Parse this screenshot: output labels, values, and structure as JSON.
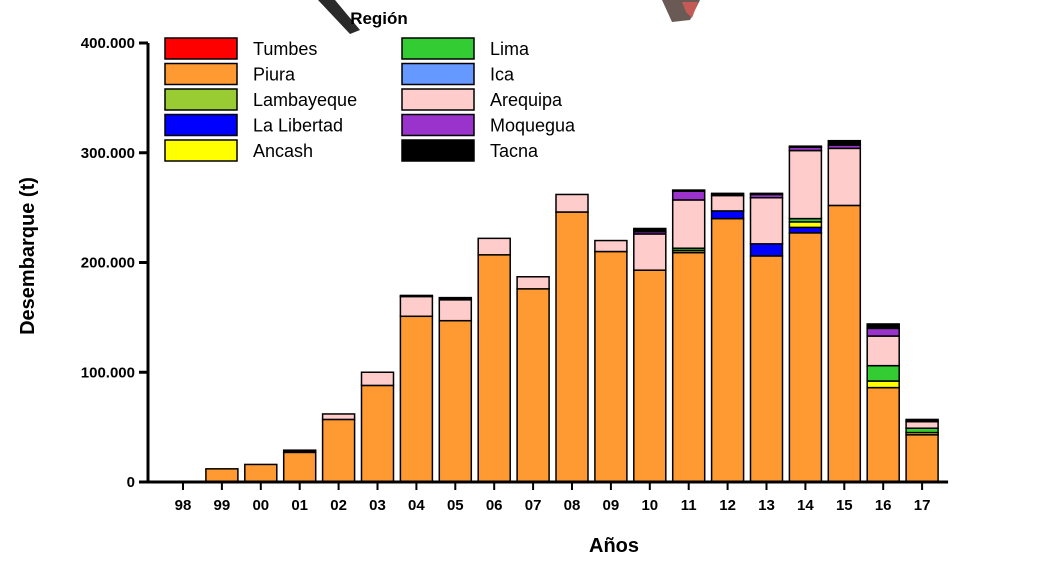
{
  "chart_data": {
    "type": "bar",
    "stacked": true,
    "xlabel": "Años",
    "ylabel": "Desembarque (t)",
    "ylim": [
      0,
      400000
    ],
    "yticks": [
      0,
      100000,
      200000,
      300000,
      400000
    ],
    "ytick_labels": [
      "0",
      "100.000",
      "200.000",
      "300.000",
      "400.000"
    ],
    "legend_title": "Región",
    "legend_position": "top-left",
    "grid": false,
    "categories": [
      "98",
      "99",
      "00",
      "01",
      "02",
      "03",
      "04",
      "05",
      "06",
      "07",
      "08",
      "09",
      "10",
      "11",
      "12",
      "13",
      "14",
      "15",
      "16",
      "17"
    ],
    "series": [
      {
        "name": "Tumbes",
        "color": "#ff0000",
        "values": [
          0,
          0,
          0,
          0,
          0,
          0,
          0,
          0,
          0,
          0,
          0,
          0,
          0,
          0,
          0,
          0,
          0,
          0,
          0,
          0
        ]
      },
      {
        "name": "Piura",
        "color": "#ff9a33",
        "values": [
          0,
          12000,
          16000,
          27000,
          57000,
          88000,
          151000,
          147000,
          207000,
          176000,
          246000,
          210000,
          193000,
          209000,
          240000,
          206000,
          227000,
          252000,
          86000,
          43000
        ]
      },
      {
        "name": "Lambayeque",
        "color": "#99cc33",
        "values": [
          0,
          0,
          0,
          0,
          0,
          0,
          0,
          0,
          0,
          0,
          0,
          0,
          0,
          2000,
          0,
          0,
          0,
          0,
          0,
          0
        ]
      },
      {
        "name": "La Libertad",
        "color": "#0000ff",
        "values": [
          0,
          0,
          0,
          0,
          0,
          0,
          0,
          0,
          0,
          0,
          0,
          0,
          0,
          0,
          7000,
          11000,
          5000,
          0,
          0,
          0
        ]
      },
      {
        "name": "Ancash",
        "color": "#ffff00",
        "values": [
          0,
          0,
          0,
          0,
          0,
          0,
          0,
          0,
          0,
          0,
          0,
          0,
          0,
          0,
          0,
          0,
          5000,
          0,
          6000,
          2000
        ]
      },
      {
        "name": "Lima",
        "color": "#33cc33",
        "values": [
          0,
          0,
          0,
          0,
          0,
          0,
          0,
          0,
          0,
          0,
          0,
          0,
          0,
          2000,
          0,
          0,
          3000,
          0,
          14000,
          4000
        ]
      },
      {
        "name": "Ica",
        "color": "#6699ff",
        "values": [
          0,
          0,
          0,
          0,
          0,
          0,
          0,
          0,
          0,
          0,
          0,
          0,
          0,
          0,
          0,
          0,
          0,
          0,
          0,
          0
        ]
      },
      {
        "name": "Arequipa",
        "color": "#ffcccc",
        "values": [
          0,
          0,
          0,
          0,
          5000,
          12000,
          18000,
          19000,
          15000,
          11000,
          16000,
          10000,
          33000,
          44000,
          14000,
          42000,
          62000,
          52000,
          27000,
          6000
        ]
      },
      {
        "name": "Moquegua",
        "color": "#9933cc",
        "values": [
          0,
          0,
          0,
          0,
          0,
          0,
          0,
          0,
          0,
          0,
          0,
          0,
          2000,
          8000,
          0,
          3000,
          3000,
          3000,
          7000,
          0
        ]
      },
      {
        "name": "Tacna",
        "color": "#000000",
        "values": [
          0,
          0,
          0,
          2000,
          0,
          0,
          1000,
          2000,
          0,
          0,
          0,
          0,
          3000,
          1000,
          2000,
          1000,
          1000,
          4000,
          4000,
          2000
        ]
      }
    ]
  }
}
